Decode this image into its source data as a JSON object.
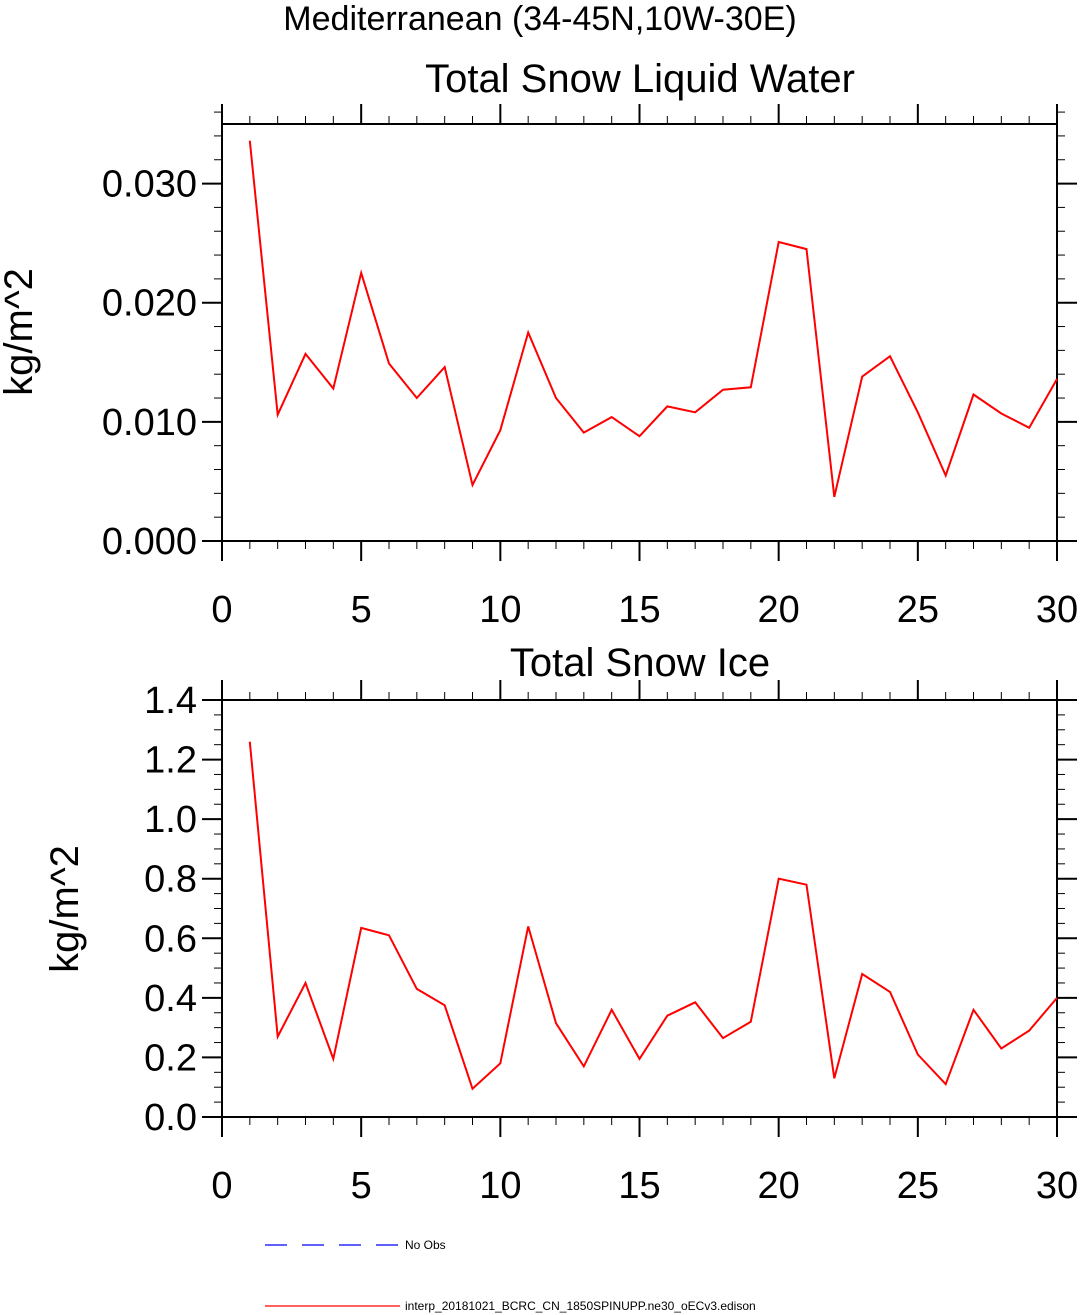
{
  "figure": {
    "suptitle": "Mediterranean (34-45N,10W-30E)"
  },
  "chart_data": [
    {
      "type": "line",
      "title": "Total Snow Liquid Water",
      "xlabel": "",
      "ylabel": "kg/m^2",
      "xlim": [
        0,
        30
      ],
      "ylim": [
        0,
        0.035
      ],
      "xticks": [
        0,
        5,
        10,
        15,
        20,
        25,
        30
      ],
      "xtick_labels": [
        "0",
        "5",
        "10",
        "15",
        "20",
        "25",
        "30"
      ],
      "yticks": [
        0,
        0.01,
        0.02,
        0.03
      ],
      "ytick_labels": [
        "0.000",
        "0.010",
        "0.020",
        "0.030"
      ],
      "x_minor_step": 1,
      "y_minor_step": 0.002,
      "series": [
        {
          "name": "interp_20181021_BCRC_CN_1850SPINUPP.ne30_oECv3.edison",
          "color": "#ff0000",
          "x": [
            1,
            2,
            3,
            4,
            5,
            6,
            7,
            8,
            9,
            10,
            11,
            12,
            13,
            14,
            15,
            16,
            17,
            18,
            19,
            20,
            21,
            22,
            23,
            24,
            25,
            26,
            27,
            28,
            29,
            30
          ],
          "values": [
            0.0336,
            0.0106,
            0.0157,
            0.0128,
            0.0225,
            0.0149,
            0.012,
            0.0146,
            0.0047,
            0.0093,
            0.0175,
            0.012,
            0.0091,
            0.0104,
            0.0088,
            0.0113,
            0.0108,
            0.0127,
            0.0129,
            0.0251,
            0.0245,
            0.0037,
            0.0138,
            0.0155,
            0.0108,
            0.0055,
            0.0123,
            0.0107,
            0.0095,
            0.0136
          ]
        }
      ]
    },
    {
      "type": "line",
      "title": "Total Snow Ice",
      "xlabel": "",
      "ylabel": "kg/m^2",
      "xlim": [
        0,
        30
      ],
      "ylim": [
        0,
        1.4
      ],
      "xticks": [
        0,
        5,
        10,
        15,
        20,
        25,
        30
      ],
      "xtick_labels": [
        "0",
        "5",
        "10",
        "15",
        "20",
        "25",
        "30"
      ],
      "yticks": [
        0,
        0.2,
        0.4,
        0.6,
        0.8,
        1.0,
        1.2,
        1.4
      ],
      "ytick_labels": [
        "0.0",
        "0.2",
        "0.4",
        "0.6",
        "0.8",
        "1.0",
        "1.2",
        "1.4"
      ],
      "x_minor_step": 1,
      "y_minor_step": 0.05,
      "series": [
        {
          "name": "interp_20181021_BCRC_CN_1850SPINUPP.ne30_oECv3.edison",
          "color": "#ff0000",
          "x": [
            1,
            2,
            3,
            4,
            5,
            6,
            7,
            8,
            9,
            10,
            11,
            12,
            13,
            14,
            15,
            16,
            17,
            18,
            19,
            20,
            21,
            22,
            23,
            24,
            25,
            26,
            27,
            28,
            29,
            30
          ],
          "values": [
            1.26,
            0.27,
            0.45,
            0.195,
            0.635,
            0.61,
            0.43,
            0.375,
            0.095,
            0.18,
            0.64,
            0.315,
            0.17,
            0.36,
            0.195,
            0.34,
            0.385,
            0.265,
            0.32,
            0.8,
            0.78,
            0.13,
            0.48,
            0.42,
            0.21,
            0.11,
            0.36,
            0.23,
            0.29,
            0.4
          ]
        }
      ]
    }
  ],
  "legend": [
    {
      "label": "No Obs",
      "color": "#0000ff",
      "style": "dashed"
    },
    {
      "label": "interp_20181021_BCRC_CN_1850SPINUPP.ne30_oECv3.edison",
      "color": "#ff0000",
      "style": "solid"
    }
  ]
}
